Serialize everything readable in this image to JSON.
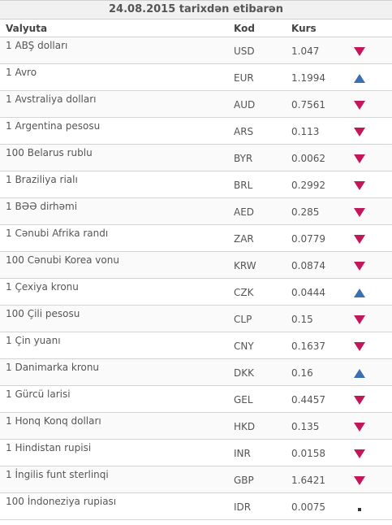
{
  "title": "24.08.2015 tarixdən etibarən",
  "columns": {
    "name": "Valyuta",
    "code": "Kod",
    "rate": "Kurs"
  },
  "colors": {
    "down": "#c2185b",
    "up": "#3a6fb0",
    "same": "#333333"
  },
  "rows": [
    {
      "name": "1 ABŞ dolları",
      "code": "USD",
      "rate": "1.047",
      "trend": "down"
    },
    {
      "name": "1 Avro",
      "code": "EUR",
      "rate": "1.1994",
      "trend": "up"
    },
    {
      "name": "1 Avstraliya dolları",
      "code": "AUD",
      "rate": "0.7561",
      "trend": "down"
    },
    {
      "name": "1 Argentina pesosu",
      "code": "ARS",
      "rate": "0.113",
      "trend": "down"
    },
    {
      "name": "100 Belarus rublu",
      "code": "BYR",
      "rate": "0.0062",
      "trend": "down"
    },
    {
      "name": "1 Braziliya rialı",
      "code": "BRL",
      "rate": "0.2992",
      "trend": "down"
    },
    {
      "name": "1 BƏƏ dirhəmi",
      "code": "AED",
      "rate": "0.285",
      "trend": "down"
    },
    {
      "name": "1 Cənubi Afrika randı",
      "code": "ZAR",
      "rate": "0.0779",
      "trend": "down"
    },
    {
      "name": "100 Cənubi Korea vonu",
      "code": "KRW",
      "rate": "0.0874",
      "trend": "down"
    },
    {
      "name": "1 Çexiya kronu",
      "code": "CZK",
      "rate": "0.0444",
      "trend": "up"
    },
    {
      "name": "100 Çili pesosu",
      "code": "CLP",
      "rate": "0.15",
      "trend": "down"
    },
    {
      "name": "1 Çin yuanı",
      "code": "CNY",
      "rate": "0.1637",
      "trend": "down"
    },
    {
      "name": "1 Danimarka kronu",
      "code": "DKK",
      "rate": "0.16",
      "trend": "up"
    },
    {
      "name": "1 Gürcü larisi",
      "code": "GEL",
      "rate": "0.4457",
      "trend": "down"
    },
    {
      "name": "1 Honq Konq dolları",
      "code": "HKD",
      "rate": "0.135",
      "trend": "down"
    },
    {
      "name": "1 Hindistan rupisi",
      "code": "INR",
      "rate": "0.0158",
      "trend": "down"
    },
    {
      "name": "1 İngilis funt sterlinqi",
      "code": "GBP",
      "rate": "1.6421",
      "trend": "down"
    },
    {
      "name": "100 İndoneziya rupiası",
      "code": "IDR",
      "rate": "0.0075",
      "trend": "same"
    }
  ]
}
